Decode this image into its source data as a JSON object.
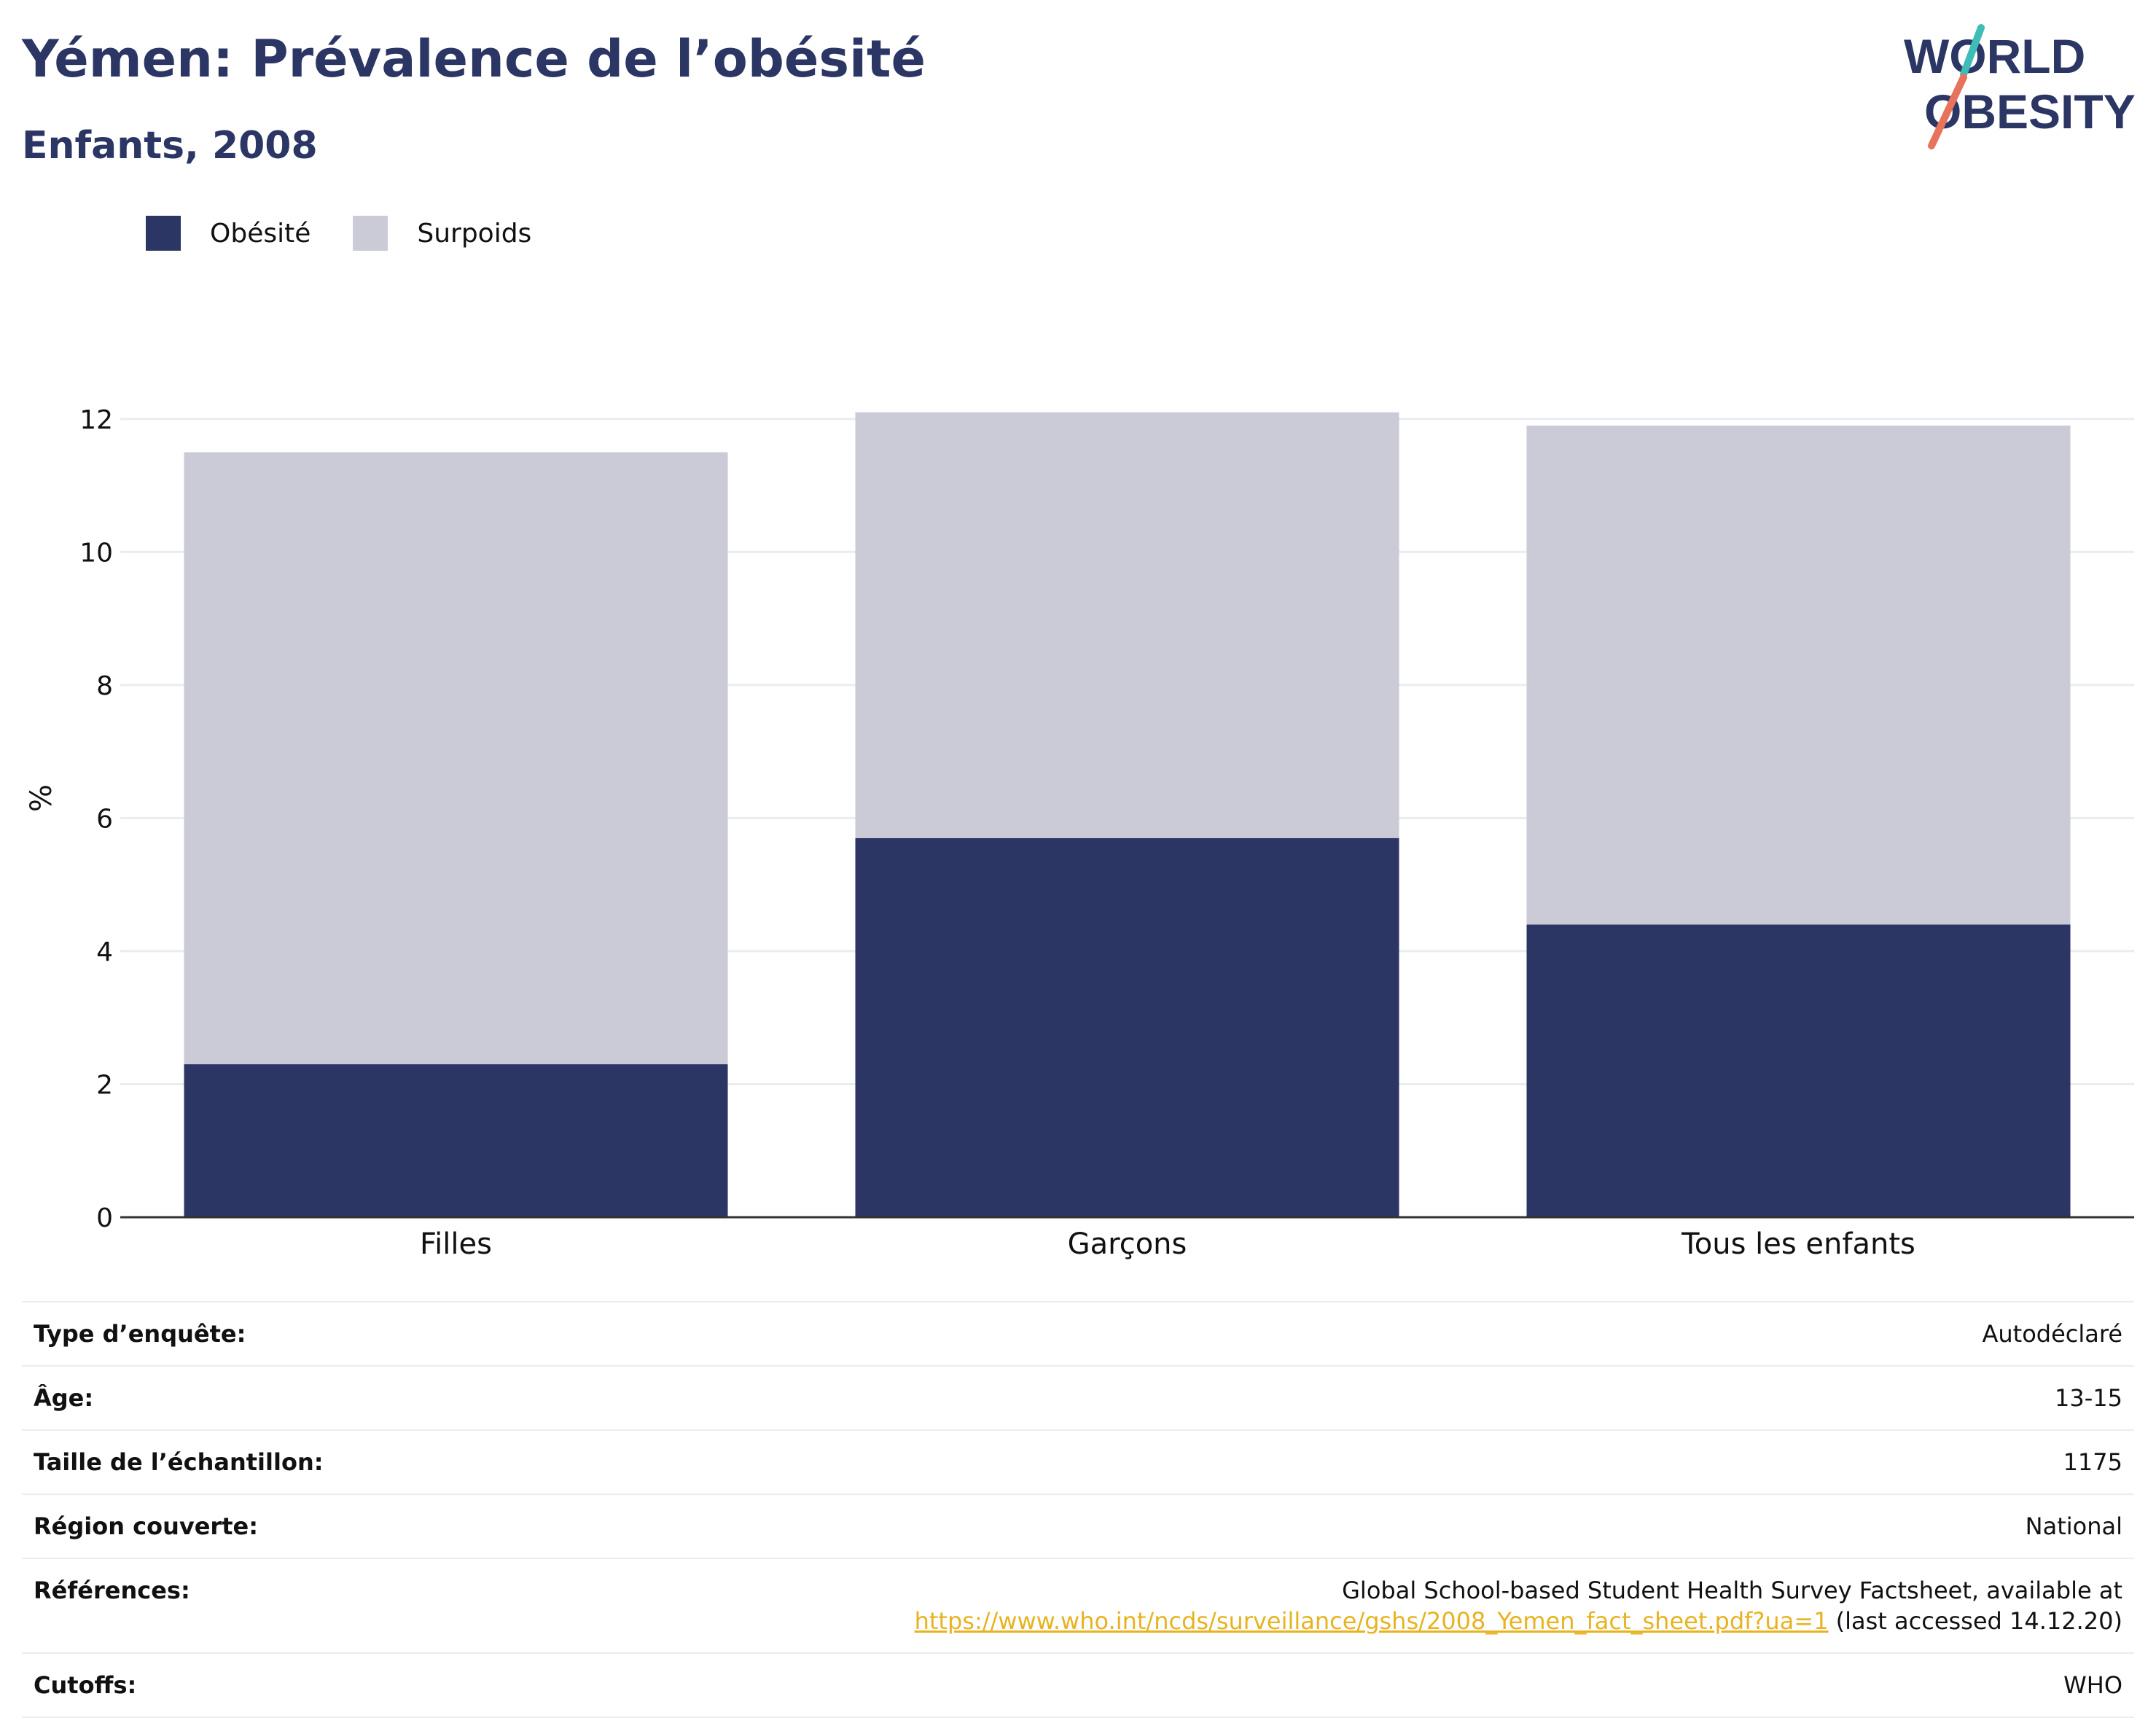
{
  "header": {
    "title": "Yémen: Prévalence de l’obésité",
    "subtitle": "Enfants, 2008",
    "logo_line1": "WORLD",
    "logo_line2": "OBESITY"
  },
  "colors": {
    "obesity": "#2b3664",
    "overweight": "#cacbd6",
    "title": "#2b3664",
    "link": "#e8b320",
    "logo_teal": "#3dbcb8",
    "logo_coral": "#e8735c"
  },
  "chart_data": {
    "type": "bar",
    "stacked": true,
    "categories": [
      "Filles",
      "Garçons",
      "Tous les enfants"
    ],
    "series": [
      {
        "name": "Obésité",
        "values": [
          2.3,
          5.7,
          4.4
        ]
      },
      {
        "name": "Surpoids",
        "values": [
          9.2,
          6.4,
          7.5
        ]
      }
    ],
    "title": "Yémen: Prévalence de l’obésité",
    "subtitle": "Enfants, 2008",
    "xlabel": "",
    "ylabel": "%",
    "ylim": [
      0,
      12.6
    ],
    "yticks": [
      0,
      2,
      4,
      6,
      8,
      10,
      12
    ],
    "grid": true,
    "legend_position": "top-left"
  },
  "info": {
    "rows": [
      {
        "key": "Type d’enquête:",
        "value": "Autodéclaré"
      },
      {
        "key": "Âge:",
        "value": "13-15"
      },
      {
        "key": "Taille de l’échantillon:",
        "value": "1175"
      },
      {
        "key": "Région couverte:",
        "value": "National"
      }
    ],
    "references": {
      "key": "Références:",
      "line1": "Global School-based Student Health Survey Factsheet, available at",
      "link": "https://www.who.int/ncds/surveillance/gshs/2008_Yemen_fact_sheet.pdf?ua=1",
      "after_link": " (last accessed 14.12.20)"
    },
    "cutoffs": {
      "key": "Cutoffs:",
      "value": "WHO"
    }
  }
}
